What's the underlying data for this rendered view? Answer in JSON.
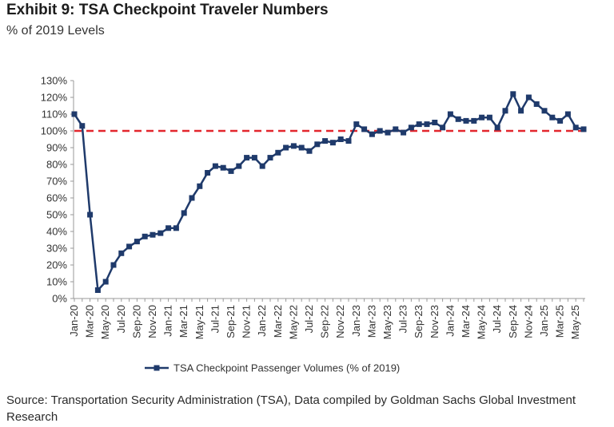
{
  "header": {
    "title": "Exhibit 9: TSA Checkpoint Traveler Numbers",
    "subtitle": "% of 2019 Levels"
  },
  "footer": {
    "source": "Source: Transportation Security Administration (TSA), Data compiled by Goldman Sachs Global Investment Research"
  },
  "colors": {
    "series": "#1f3a6b",
    "reference": "#e3262d",
    "axis": "#999999",
    "text": "#333333"
  },
  "chart_data": {
    "type": "line",
    "title": "Exhibit 9: TSA Checkpoint Traveler Numbers",
    "subtitle": "% of 2019 Levels",
    "xlabel": "",
    "ylabel": "",
    "y_unit": "%",
    "ylim": [
      0,
      130
    ],
    "yticks": [
      0,
      10,
      20,
      30,
      40,
      50,
      60,
      70,
      80,
      90,
      100,
      110,
      120,
      130
    ],
    "x_tick_labels": [
      "Jan-20",
      "Mar-20",
      "May-20",
      "Jul-20",
      "Sep-20",
      "Nov-20",
      "Jan-21",
      "Mar-21",
      "May-21",
      "Jul-21",
      "Sep-21",
      "Nov-21",
      "Jan-22",
      "Mar-22",
      "May-22",
      "Jul-22",
      "Sep-22",
      "Nov-22",
      "Jan-23",
      "Mar-23",
      "May-23",
      "Jul-23",
      "Sep-23",
      "Nov-23",
      "Jan-24",
      "Mar-24",
      "May-24",
      "Jul-24",
      "Sep-24",
      "Nov-24",
      "Jan-25",
      "Mar-25",
      "May-25"
    ],
    "grid": false,
    "legend_position": "bottom",
    "reference_line": {
      "value": 100,
      "style": "dashed"
    },
    "series": [
      {
        "name": "TSA Checkpoint Passenger Volumes (% of 2019)",
        "x": [
          "Jan-20",
          "Feb-20",
          "Mar-20",
          "Apr-20",
          "May-20",
          "Jun-20",
          "Jul-20",
          "Aug-20",
          "Sep-20",
          "Oct-20",
          "Nov-20",
          "Dec-20",
          "Jan-21",
          "Feb-21",
          "Mar-21",
          "Apr-21",
          "May-21",
          "Jun-21",
          "Jul-21",
          "Aug-21",
          "Sep-21",
          "Oct-21",
          "Nov-21",
          "Dec-21",
          "Jan-22",
          "Feb-22",
          "Mar-22",
          "Apr-22",
          "May-22",
          "Jun-22",
          "Jul-22",
          "Aug-22",
          "Sep-22",
          "Oct-22",
          "Nov-22",
          "Dec-22",
          "Jan-23",
          "Feb-23",
          "Mar-23",
          "Apr-23",
          "May-23",
          "Jun-23",
          "Jul-23",
          "Aug-23",
          "Sep-23",
          "Oct-23",
          "Nov-23",
          "Dec-23",
          "Jan-24",
          "Feb-24",
          "Mar-24",
          "Apr-24",
          "May-24",
          "Jun-24",
          "Jul-24",
          "Aug-24",
          "Sep-24",
          "Oct-24",
          "Nov-24",
          "Dec-24",
          "Jan-25",
          "Feb-25",
          "Mar-25",
          "Apr-25",
          "May-25",
          "Jun-25"
        ],
        "values": [
          110,
          103,
          50,
          5,
          10,
          20,
          27,
          31,
          34,
          37,
          38,
          39,
          42,
          42,
          51,
          60,
          67,
          75,
          79,
          78,
          76,
          79,
          84,
          84,
          79,
          84,
          87,
          90,
          91,
          90,
          88,
          92,
          94,
          93,
          95,
          94,
          104,
          101,
          98,
          100,
          99,
          101,
          99,
          102,
          104,
          104,
          105,
          102,
          110,
          107,
          106,
          106,
          108,
          108,
          102,
          112,
          122,
          112,
          120,
          116,
          112,
          108,
          106,
          110,
          102,
          101
        ]
      }
    ]
  }
}
